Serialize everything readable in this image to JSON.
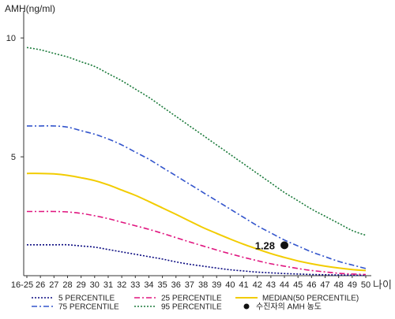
{
  "chart_data": {
    "type": "line",
    "ylabel": "AMH(ng/ml)",
    "xlabel": "나이",
    "categories": [
      "16-25",
      "26",
      "27",
      "28",
      "29",
      "30",
      "31",
      "32",
      "33",
      "34",
      "35",
      "36",
      "37",
      "38",
      "39",
      "40",
      "41",
      "42",
      "43",
      "44",
      "45",
      "46",
      "47",
      "48",
      "49",
      "50"
    ],
    "yticks": [
      5,
      10
    ],
    "ylim": [
      0,
      11
    ],
    "grid": false,
    "legend_position": "bottom",
    "series": [
      {
        "name": "5 PERCENTILE",
        "color": "#0a0a80",
        "dash": "dotted",
        "values": [
          1.3,
          1.3,
          1.3,
          1.3,
          1.25,
          1.2,
          1.1,
          1.0,
          0.9,
          0.8,
          0.7,
          0.58,
          0.48,
          0.4,
          0.32,
          0.25,
          0.2,
          0.15,
          0.12,
          0.09,
          0.07,
          0.05,
          0.04,
          0.03,
          0.02,
          0.02
        ]
      },
      {
        "name": "25 PERCENTILE",
        "color": "#e0157f",
        "dash": "dashdot",
        "values": [
          2.7,
          2.7,
          2.7,
          2.68,
          2.62,
          2.52,
          2.4,
          2.25,
          2.1,
          1.95,
          1.78,
          1.6,
          1.42,
          1.25,
          1.08,
          0.92,
          0.77,
          0.63,
          0.5,
          0.4,
          0.3,
          0.22,
          0.16,
          0.1,
          0.07,
          0.05
        ]
      },
      {
        "name": "75 PERCENTILE",
        "color": "#3355cc",
        "dash": "dashdot",
        "values": [
          6.3,
          6.3,
          6.3,
          6.25,
          6.1,
          5.95,
          5.75,
          5.5,
          5.2,
          4.9,
          4.55,
          4.2,
          3.85,
          3.5,
          3.15,
          2.8,
          2.45,
          2.1,
          1.8,
          1.5,
          1.25,
          1.0,
          0.8,
          0.6,
          0.45,
          0.3
        ]
      },
      {
        "name": "95 PERCENTILE",
        "color": "#1a7a3a",
        "dash": "dotted",
        "values": [
          9.6,
          9.5,
          9.35,
          9.2,
          9.0,
          8.8,
          8.5,
          8.2,
          7.85,
          7.5,
          7.1,
          6.7,
          6.3,
          5.9,
          5.5,
          5.1,
          4.7,
          4.3,
          3.9,
          3.5,
          3.15,
          2.8,
          2.5,
          2.2,
          1.9,
          1.7
        ]
      },
      {
        "name": "MEDIAN(50 PERCENTILE)",
        "color": "#f2cc00",
        "dash": "solid",
        "values": [
          4.3,
          4.3,
          4.28,
          4.22,
          4.12,
          4.0,
          3.82,
          3.6,
          3.38,
          3.12,
          2.85,
          2.58,
          2.3,
          2.02,
          1.78,
          1.54,
          1.32,
          1.12,
          0.93,
          0.77,
          0.62,
          0.5,
          0.4,
          0.32,
          0.26,
          0.22
        ]
      }
    ],
    "marker": {
      "name": "수진자의 AMH 농도",
      "x": "44",
      "y": 1.28,
      "label": "1.28",
      "color": "#111111"
    }
  }
}
